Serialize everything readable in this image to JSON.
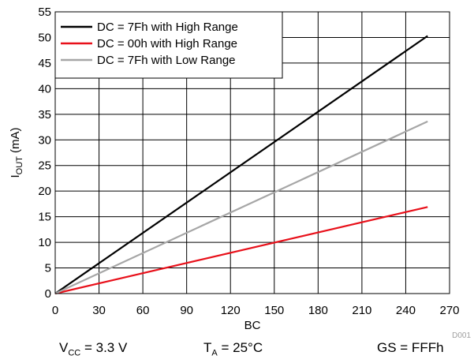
{
  "chart_data": {
    "type": "line",
    "xlabel": "BC",
    "ylabel": "I_OUT (mA)",
    "ylabel_main": "I",
    "ylabel_sub": "OUT",
    "ylabel_unit": " (mA)",
    "xlim": [
      0,
      270
    ],
    "ylim": [
      0,
      55
    ],
    "xticks": [
      0,
      30,
      60,
      90,
      120,
      150,
      180,
      210,
      240,
      270
    ],
    "yticks": [
      0,
      5,
      10,
      15,
      20,
      25,
      30,
      35,
      40,
      45,
      50,
      55
    ],
    "grid": true,
    "legend_position": "top-left",
    "series": [
      {
        "name": "DC = 7Fh with High Range",
        "color": "#000000",
        "x": [
          0,
          255
        ],
        "y": [
          0,
          50.3
        ]
      },
      {
        "name": "DC = 00h with High Range",
        "color": "#e8101a",
        "x": [
          0,
          255
        ],
        "y": [
          0,
          16.9
        ]
      },
      {
        "name": "DC = 7Fh with Low Range",
        "color": "#a6a6a6",
        "x": [
          0,
          255
        ],
        "y": [
          0,
          33.6
        ]
      }
    ],
    "figure_id": "D001"
  },
  "conditions": {
    "vcc_main": "V",
    "vcc_sub": "CC",
    "vcc_value": " = 3.3 V",
    "ta_main": "T",
    "ta_sub": "A",
    "ta_value": " = 25°C",
    "gs": "GS = FFFh"
  }
}
